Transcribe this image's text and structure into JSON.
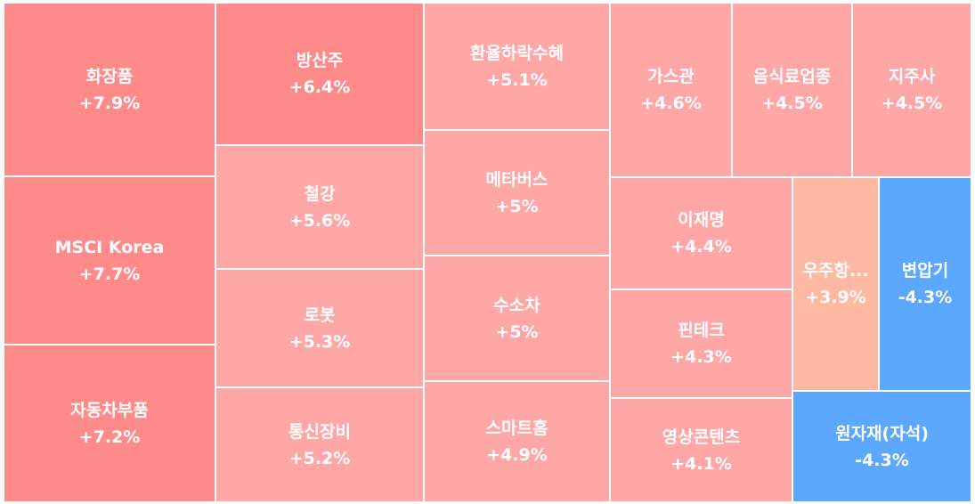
{
  "chart_data": {
    "type": "treemap",
    "items": [
      {
        "name": "화장품",
        "change": "+7.9%",
        "value": 7.9,
        "color": "#ff8a8a"
      },
      {
        "name": "MSCI Korea",
        "change": "+7.7%",
        "value": 7.7,
        "color": "#ff8a8a"
      },
      {
        "name": "자동차부품",
        "change": "+7.2%",
        "value": 7.2,
        "color": "#ff8a8a"
      },
      {
        "name": "방산주",
        "change": "+6.4%",
        "value": 6.4,
        "color": "#ff8a8a"
      },
      {
        "name": "철강",
        "change": "+5.6%",
        "value": 5.6,
        "color": "#ffa6a6"
      },
      {
        "name": "로봇",
        "change": "+5.3%",
        "value": 5.3,
        "color": "#ffa6a6"
      },
      {
        "name": "통신장비",
        "change": "+5.2%",
        "value": 5.2,
        "color": "#ffa6a6"
      },
      {
        "name": "환율하락수혜",
        "change": "+5.1%",
        "value": 5.1,
        "color": "#ffa6a6"
      },
      {
        "name": "메타버스",
        "change": "+5%",
        "value": 5.0,
        "color": "#ffa6a6"
      },
      {
        "name": "수소차",
        "change": "+5%",
        "value": 5.0,
        "color": "#ffa6a6"
      },
      {
        "name": "스마트홈",
        "change": "+4.9%",
        "value": 4.9,
        "color": "#ffa6a6"
      },
      {
        "name": "가스관",
        "change": "+4.6%",
        "value": 4.6,
        "color": "#ffa6a6"
      },
      {
        "name": "음식료업종",
        "change": "+4.5%",
        "value": 4.5,
        "color": "#ffa6a6"
      },
      {
        "name": "지주사",
        "change": "+4.5%",
        "value": 4.5,
        "color": "#ffa6a6"
      },
      {
        "name": "이재명",
        "change": "+4.4%",
        "value": 4.4,
        "color": "#ffa6a6"
      },
      {
        "name": "핀테크",
        "change": "+4.3%",
        "value": 4.3,
        "color": "#ffa6a6"
      },
      {
        "name": "영상콘텐츠",
        "change": "+4.1%",
        "value": 4.1,
        "color": "#ffa6a6"
      },
      {
        "name": "우주항...",
        "change": "+3.9%",
        "value": 3.9,
        "color": "#ffb8a2"
      },
      {
        "name": "변압기",
        "change": "-4.3%",
        "value": -4.3,
        "color": "#5ca8ff"
      },
      {
        "name": "원자재(자석)",
        "change": "-4.3%",
        "value": -4.3,
        "color": "#5ca8ff"
      }
    ]
  }
}
